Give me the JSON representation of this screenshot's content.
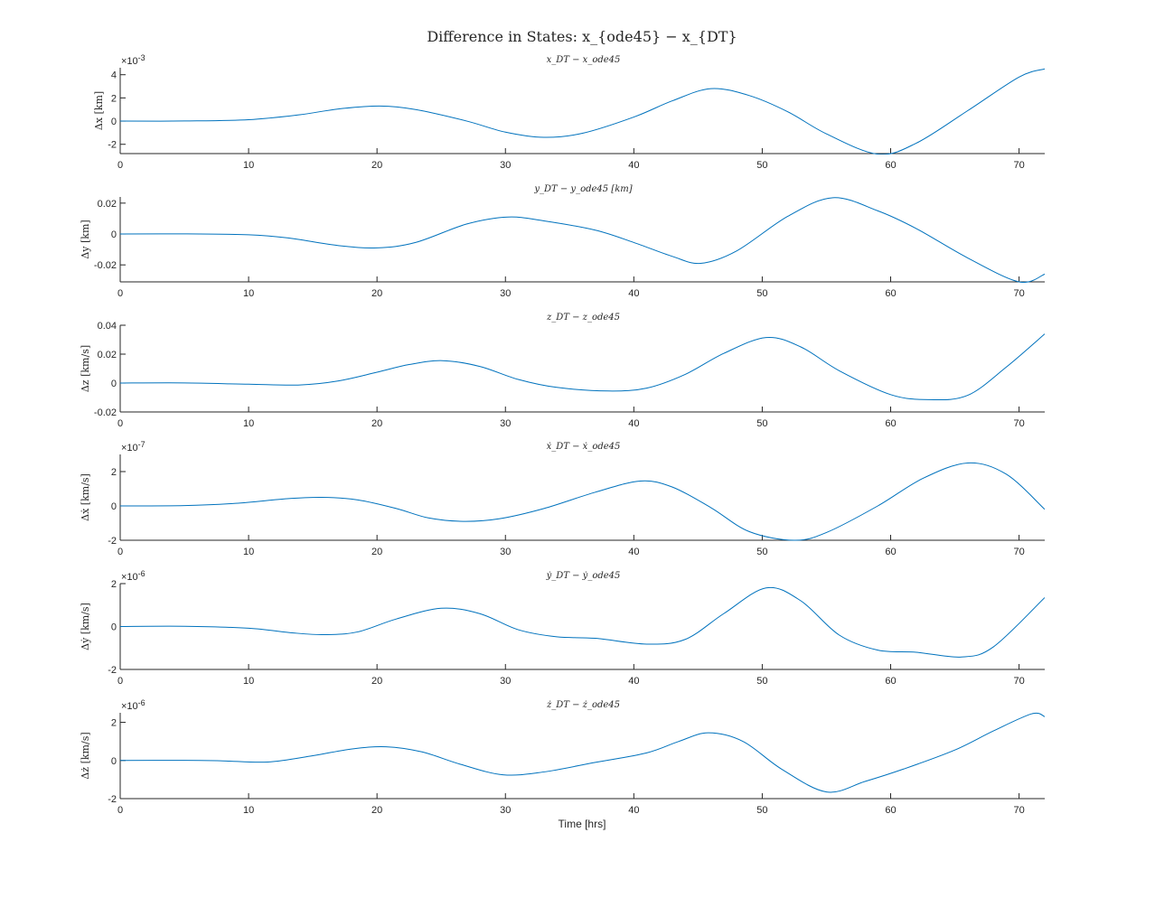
{
  "figure": {
    "title": "Difference in States: x_{ode45} − x_{DT}",
    "xlabel": "Time [hrs]",
    "series_color": "#0072bd",
    "axis_color": "#262626"
  },
  "chart_data": [
    {
      "type": "line",
      "title": "x_DT − x_ode45",
      "ylabel": "Δx [km]",
      "exponent": "×10^-3",
      "xlim": [
        0,
        72
      ],
      "ylim": [
        -2.8,
        4.6
      ],
      "yticks": [
        -2,
        0,
        2,
        4
      ],
      "ytick_labels": [
        "-2",
        "0",
        "2",
        "4"
      ],
      "xticks": [
        0,
        10,
        20,
        30,
        40,
        50,
        60,
        70
      ],
      "xtick_labels": [
        "0",
        "10",
        "20",
        "30",
        "40",
        "50",
        "60",
        "70"
      ],
      "x": [
        0,
        5,
        10,
        14,
        17,
        20.2,
        23,
        27,
        30,
        33,
        36,
        40,
        43,
        46,
        49,
        52,
        55,
        59,
        62,
        66,
        70,
        72
      ],
      "y": [
        0,
        0.01,
        0.12,
        0.55,
        1.05,
        1.3,
        1.0,
        0.0,
        -0.95,
        -1.4,
        -1.05,
        0.35,
        1.75,
        2.8,
        2.2,
        0.8,
        -1.1,
        -2.85,
        -1.9,
        0.9,
        3.8,
        4.5
      ]
    },
    {
      "type": "line",
      "title": "y_DT − y_ode45 [km]",
      "ylabel": "Δy [km]",
      "exponent": "",
      "xlim": [
        0,
        72
      ],
      "ylim": [
        -0.031,
        0.024
      ],
      "yticks": [
        -0.02,
        0,
        0.02
      ],
      "ytick_labels": [
        "-0.02",
        "0",
        "0.02"
      ],
      "xticks": [
        0,
        10,
        20,
        30,
        40,
        50,
        60,
        70
      ],
      "xtick_labels": [
        "0",
        "10",
        "20",
        "30",
        "40",
        "50",
        "60",
        "70"
      ],
      "x": [
        0,
        5,
        10,
        13,
        17,
        20,
        23,
        27,
        30.2,
        33,
        37,
        40,
        43,
        45.2,
        48,
        52,
        55.5,
        59,
        62,
        66,
        70,
        72
      ],
      "y": [
        0,
        0.0001,
        -0.0005,
        -0.0025,
        -0.0075,
        -0.009,
        -0.0055,
        0.0065,
        0.011,
        0.0085,
        0.0025,
        -0.0055,
        -0.0145,
        -0.019,
        -0.011,
        0.0115,
        0.0235,
        0.015,
        0.0035,
        -0.0155,
        -0.031,
        -0.026
      ]
    },
    {
      "type": "line",
      "title": "z_DT − z_ode45",
      "ylabel": "Δz [km/s]",
      "exponent": "",
      "xlim": [
        0,
        72
      ],
      "ylim": [
        -0.02,
        0.04
      ],
      "yticks": [
        -0.02,
        0,
        0.02,
        0.04
      ],
      "ytick_labels": [
        "-0.02",
        "0",
        "0.02",
        "0.04"
      ],
      "xticks": [
        0,
        10,
        20,
        30,
        40,
        50,
        60,
        70
      ],
      "xtick_labels": [
        "0",
        "10",
        "20",
        "30",
        "40",
        "50",
        "60",
        "70"
      ],
      "x": [
        0,
        5,
        10,
        14,
        17,
        20,
        22.5,
        25.1,
        28,
        31,
        34,
        38,
        41,
        44,
        47,
        50.3,
        53,
        56,
        60,
        63,
        66,
        69,
        72
      ],
      "y": [
        0,
        0.0001,
        -0.0008,
        -0.0013,
        0.0015,
        0.0075,
        0.0128,
        0.0155,
        0.0115,
        0.0025,
        -0.003,
        -0.0055,
        -0.0035,
        0.006,
        0.0205,
        0.0315,
        0.025,
        0.0085,
        -0.008,
        -0.0115,
        -0.0085,
        0.011,
        0.034
      ]
    },
    {
      "type": "line",
      "title": "ẋ_DT − ẋ_ode45",
      "ylabel": "Δẋ [km/s]",
      "exponent": "×10^-7",
      "xlim": [
        0,
        72
      ],
      "ylim": [
        -2,
        3
      ],
      "yticks": [
        -2,
        0,
        2
      ],
      "ytick_labels": [
        "-2",
        "0",
        "2"
      ],
      "xticks": [
        0,
        10,
        20,
        30,
        40,
        50,
        60,
        70
      ],
      "xtick_labels": [
        "0",
        "10",
        "20",
        "30",
        "40",
        "50",
        "60",
        "70"
      ],
      "x": [
        0,
        5,
        9,
        13,
        15.7,
        18.5,
        21.5,
        24,
        26.7,
        29.5,
        33,
        37,
        40.5,
        43,
        46,
        49,
        52.5,
        55,
        59,
        62.5,
        66,
        69,
        72
      ],
      "y": [
        0,
        0.02,
        0.15,
        0.42,
        0.5,
        0.35,
        -0.15,
        -0.7,
        -0.9,
        -0.75,
        -0.15,
        0.8,
        1.45,
        1.1,
        -0.1,
        -1.5,
        -2.0,
        -1.55,
        0.0,
        1.6,
        2.5,
        1.85,
        -0.2
      ]
    },
    {
      "type": "line",
      "title": "ẏ_DT − ẏ_ode45",
      "ylabel": "Δẏ [km/s]",
      "exponent": "×10^-6",
      "xlim": [
        0,
        72
      ],
      "ylim": [
        -2,
        2
      ],
      "yticks": [
        -2,
        0,
        2
      ],
      "ytick_labels": [
        "-2",
        "0",
        "2"
      ],
      "xticks": [
        0,
        10,
        20,
        30,
        40,
        50,
        60,
        70
      ],
      "xtick_labels": [
        "0",
        "10",
        "20",
        "30",
        "40",
        "50",
        "60",
        "70"
      ],
      "x": [
        0,
        5,
        10,
        13.5,
        16,
        18.5,
        21.5,
        25,
        28,
        31,
        34,
        37,
        41,
        44,
        47,
        50.3,
        53,
        56,
        59,
        62,
        65.5,
        68,
        72
      ],
      "y": [
        0,
        0.01,
        -0.08,
        -0.3,
        -0.38,
        -0.25,
        0.35,
        0.85,
        0.6,
        -0.15,
        -0.48,
        -0.55,
        -0.82,
        -0.6,
        0.6,
        1.8,
        1.2,
        -0.4,
        -1.1,
        -1.2,
        -1.42,
        -0.95,
        1.35
      ]
    },
    {
      "type": "line",
      "title": "ż_DT − ż_ode45",
      "ylabel": "Δż [km/s]",
      "exponent": "×10^-6",
      "xlim": [
        0,
        72
      ],
      "ylim": [
        -2,
        2.5
      ],
      "yticks": [
        -2,
        0,
        2
      ],
      "ytick_labels": [
        "-2",
        "0",
        "2"
      ],
      "xticks": [
        0,
        10,
        20,
        30,
        40,
        50,
        60,
        70
      ],
      "xtick_labels": [
        "0",
        "10",
        "20",
        "30",
        "40",
        "50",
        "60",
        "70"
      ],
      "x": [
        0,
        5,
        8,
        11.5,
        15,
        18,
        20.7,
        23.5,
        26.5,
        29.8,
        33,
        37,
        41,
        43.5,
        45.8,
        48.5,
        51.5,
        55,
        58,
        61,
        65,
        68,
        71,
        72
      ],
      "y": [
        0,
        0.01,
        -0.02,
        -0.08,
        0.25,
        0.6,
        0.72,
        0.45,
        -0.2,
        -0.75,
        -0.6,
        -0.1,
        0.4,
        1.0,
        1.45,
        1.0,
        -0.45,
        -1.65,
        -1.1,
        -0.45,
        0.55,
        1.55,
        2.45,
        2.3
      ]
    }
  ]
}
